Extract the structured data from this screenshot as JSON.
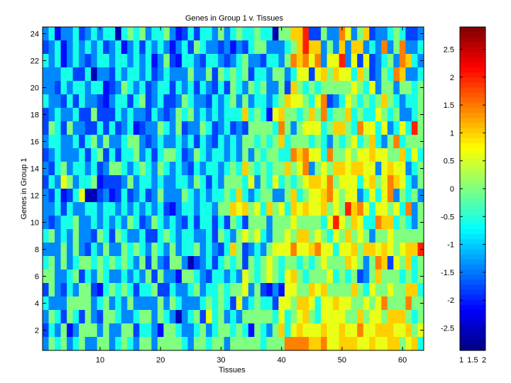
{
  "chart_data": {
    "type": "heatmap",
    "title": "Genes in Group 1 v. Tissues",
    "xlabel": "Tissues",
    "ylabel": "Genes in Group 1",
    "x_range": [
      0.5,
      63.5
    ],
    "y_range": [
      0.5,
      24.5
    ],
    "x_ticks": [
      10,
      20,
      30,
      40,
      50,
      60
    ],
    "y_ticks": [
      2,
      4,
      6,
      8,
      10,
      12,
      14,
      16,
      18,
      20,
      22,
      24
    ],
    "n_rows": 24,
    "n_cols": 63,
    "rows": [
      "a.Baa.ba.a..A.,.,a..,aBb.b..a,a.,..,..A,,ddfbb,aaeca,dbaa.,.bba.",
      "ba.Ba.a.a.ba.Ba.b.a.aBa.b,.aabaBab.,,aaa.,dfdda,adadda.aea,eaa.",
      ".a.Ba.aba..a..a.a.Ba,bB..ab..aba.,aab..a,edeceaccfacbcba.,aed.a",
      "aaa..bb.Aaab.a..a.ba.aaa,aa,b,.,.,b..a,,a.ccbcd,dcc.d,ba,.edaa.",
      "aab.a..a..Bba,.a.ba..b.a.b.ab.b,.a,.,aa,bd,.,.,,,,,c,.ca,,a,,.",
      ".aab.b.aabBa..b.,ba.bba,.aab.a.,a,a..a.,dcc,.ceba.c,.,.,d,.a..",
      "ba.aa.bb,bbb.a.aab.aba,.,a.a.a...d.,.Bcd,,.,d,e.,,d.,..c,.,aa.",
      "b,.b,aabb.b.ba.Bbaa,.a,baa,.ba.bab,,,,.e,a,ccc.,dd,.ecc.ca.c.f",
      "a..aa.b.,a,aa.,,aba.aa.a.b.ab.a.a,,.,.,d.,,,.,.a,.,c.,d.a,e.,,",
      "ba.aaa.b.,b.b..,a.b.,,.ba,.a..a.a,a,.,,..edecc.e,,c,ccdcc,,d.c.",
      "ab.,a..a.ba,,.a.,.a,.a.ab.a..a.,.d,.,.,,d,cea,c,ddcddccacdcca.",
      "b.ac,a..,Bbbba,a..a.aa..a,.b.a,,,.ca,.c.,.,cddce,ccc.cd,cedc.a",
      "ab.Bb.cAAbaBb.ba.ba,aaa,.a.a..,.d.a.,,aa,d.,ccdec,cca.c.cea,.,a",
      "aa.b.aa..a..a.a.a.a.bBa..a..a,,dcd,c.d,c.dcdccd,c,fdec.cc,c.ea",
      "aba..,aa.a.a.a,.ba,.a.ab.b..b.b,.b,,,a,,,c,,,,.cfc,dc..edd.,.a,",
      ".,a.a,aab,.b,.aa.bb.,.a..aa.b,.a,c,c.a,,c,dd,c,.c,d,c,a,,c,,,,",
      "aaa,a,ab.a,aa,.,.a,.a,a..,a.ab.d,ba.a,ccceccdecc.ccd,ddcdc,cddf",
      ".,a,a.,,.,.,.,.a,b,ab,,aAba.b.,.,b,.,c,.,,.,.,c,,,dc,a,edbc,d.",
      ",,aa.,b.a,.aa.a.a,b,aaB,,.ab..a.ac,.,c,.cd,.,,,c.,.,ba,d,,,.,.",
      "b,ab.a,,bB.,.,.b..,bb.aa.,a..,.,,ca,bBaBcc,,dcd,,,,d,.c,,c,,dd.",
      ".aaa,,,,a.,a.a,aaaa,a,.aaa.,.,.bca.,..bcc,ddc.ccdcc,,c,ce,,,e,,",
      "a,.b,.b,ab,,.aa.,,a,.aAa.,bc.,a.a,,,,,.c.,cd,.cccc,,d,cc,ddd,.,",
      "b.a,Ba,,,a,aa,,b..aB,,.aa.,a.,,.,.B,.a,d.cdcccdccdcceccdddccd,c",
      "a,.,a.,aa,,a.,.a,,a,,,,.a,,.,,a,,,,,.,,,eeeeddeccdddccdccdd,cd."
    ],
    "value_key": {
      "A": -2.6,
      "B": -2.1,
      "a": -1.4,
      "b": -1.8,
      ".": -0.6,
      ",": 0.0,
      "c": 0.6,
      "d": 1.0,
      "e": 1.45,
      "f": 2.0
    },
    "colorbar": {
      "range": [
        -2.9,
        2.9
      ],
      "ticks": [
        "2.5",
        "2",
        "1.5",
        "1",
        "0.5",
        "0",
        "-0.5",
        "-1",
        "-1.5",
        "-2",
        "-2.5"
      ],
      "tick_values": [
        2.5,
        2,
        1.5,
        1,
        0.5,
        0,
        -0.5,
        -1,
        -1.5,
        -2,
        -2.5
      ],
      "x_ticks": [
        "1",
        "1.5",
        "2"
      ]
    }
  }
}
